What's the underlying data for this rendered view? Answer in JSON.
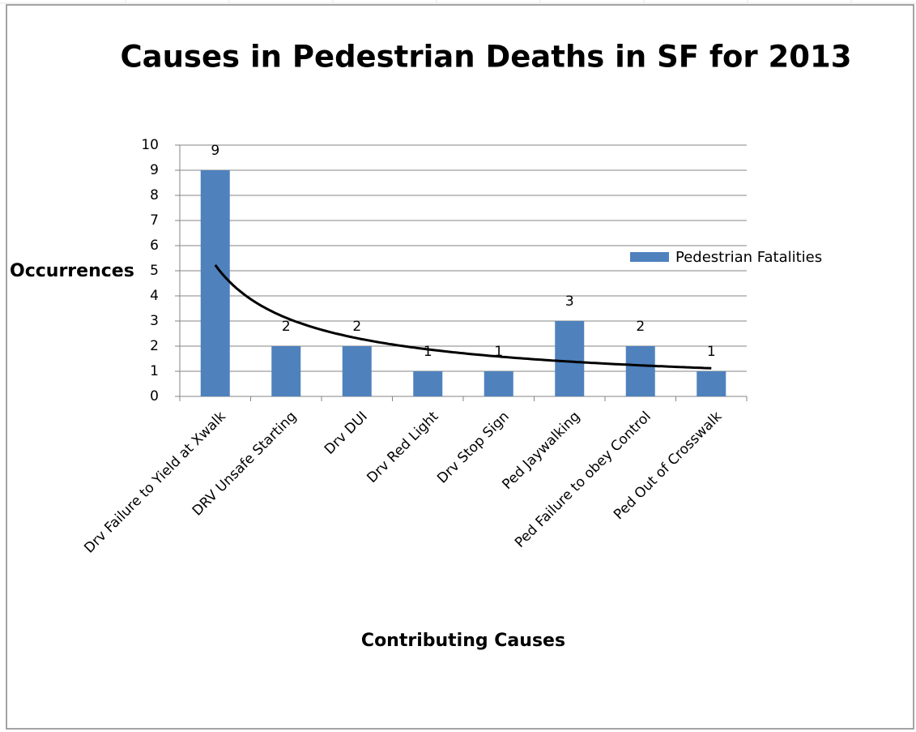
{
  "chart_data": {
    "type": "bar",
    "title": "Causes in Pedestrian Deaths in SF for 2013",
    "x_label": "Contributing Causes",
    "y_label": "Occurrences",
    "categories": [
      "Drv Failure to Yield at Xwalk",
      "DRV Unsafe Starting",
      "Drv DUI",
      "Drv Red Light",
      "Drv Stop Sign",
      "Ped Jaywalking",
      "Ped Failure to obey Control",
      "Ped Out of Crosswalk"
    ],
    "series": [
      {
        "name": "Pedestrian Fatalities",
        "color": "#4f81bd",
        "values": [
          9,
          2,
          2,
          1,
          1,
          3,
          2,
          1
        ]
      }
    ],
    "ylim": [
      0,
      10
    ],
    "yticks": [
      0,
      1,
      2,
      3,
      4,
      5,
      6,
      7,
      8,
      9,
      10
    ],
    "grid": true,
    "legend": "right",
    "trendline": "power",
    "trendline_color": "#000000"
  }
}
